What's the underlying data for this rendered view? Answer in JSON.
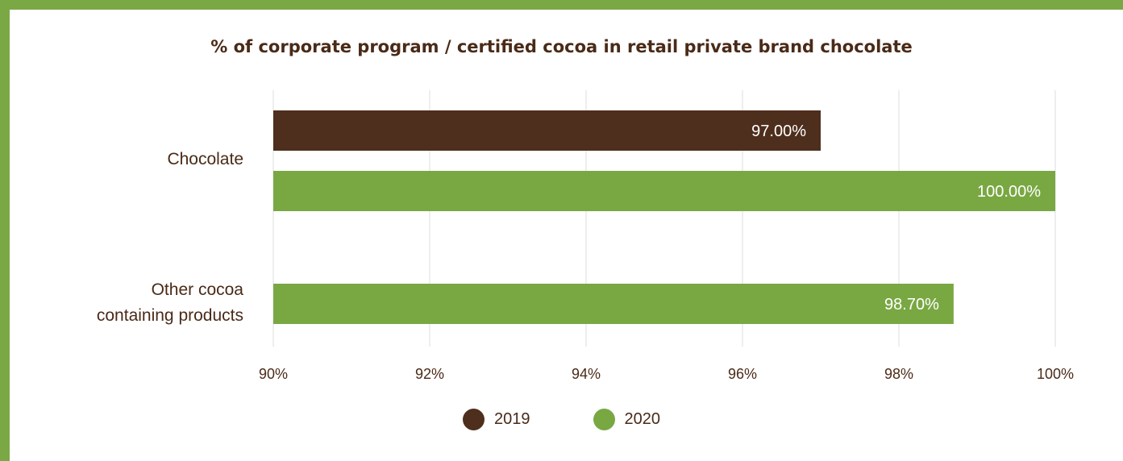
{
  "chart_data": {
    "type": "bar",
    "orientation": "horizontal",
    "title": "% of corporate program / certified cocoa in retail private brand chocolate",
    "categories": [
      "Chocolate",
      "Other cocoa containing products"
    ],
    "category_lines": [
      [
        "Chocolate"
      ],
      [
        "Other cocoa",
        "containing products"
      ]
    ],
    "series": [
      {
        "name": "2019",
        "color": "#4e2e1c",
        "values": [
          97.0,
          null
        ],
        "labels": [
          "97.00%",
          null
        ]
      },
      {
        "name": "2020",
        "color": "#79a843",
        "values": [
          100.0,
          98.7
        ],
        "labels": [
          "100.00%",
          "98.70%"
        ]
      }
    ],
    "xlim": [
      90,
      100
    ],
    "xticks": [
      90,
      92,
      94,
      96,
      98,
      100
    ],
    "xtick_labels": [
      "90%",
      "92%",
      "94%",
      "96%",
      "98%",
      "100%"
    ],
    "grid": "vertical",
    "legend_position": "bottom-center"
  }
}
